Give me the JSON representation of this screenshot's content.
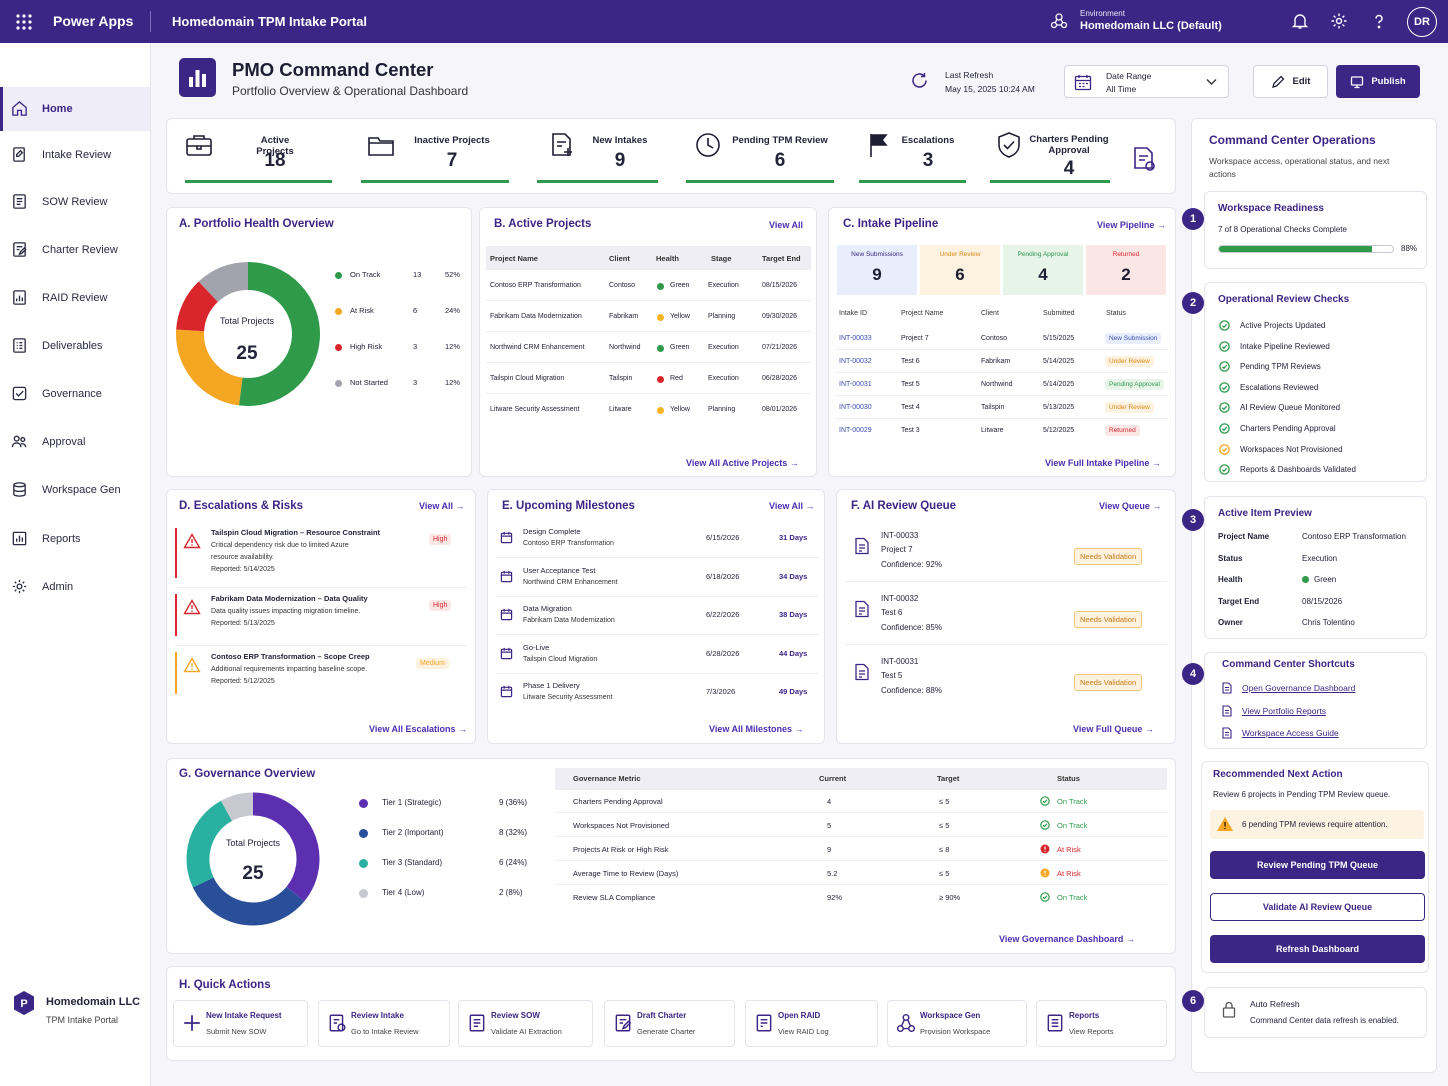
{
  "topbar": {
    "app": "Power Apps",
    "portal": "Homedomain TPM Intake Portal",
    "env_label": "Environment",
    "env_value": "Homedomain LLC (Default)",
    "user": "DR"
  },
  "sidebar": {
    "items": [
      {
        "label": "Home",
        "icon": "home-icon"
      },
      {
        "label": "Intake Review",
        "icon": "edit-doc-icon"
      },
      {
        "label": "SOW Review",
        "icon": "doc-icon"
      },
      {
        "label": "Charter Review",
        "icon": "doc-edit-icon"
      },
      {
        "label": "RAID Review",
        "icon": "doc-chart-icon"
      },
      {
        "label": "Deliverables",
        "icon": "doc-list-icon"
      },
      {
        "label": "Governance",
        "icon": "check-box-icon"
      },
      {
        "label": "Approval",
        "icon": "people-icon"
      },
      {
        "label": "Workspace Gen",
        "icon": "db-icon"
      },
      {
        "label": "Reports",
        "icon": "report-icon"
      },
      {
        "label": "Admin",
        "icon": "gear-icon"
      }
    ],
    "org_name": "Homedomain LLC",
    "org_sub": "TPM Intake Portal",
    "org_logo": "P"
  },
  "header": {
    "title": "PMO Command Center",
    "subtitle": "Portfolio Overview & Operational Dashboard",
    "refresh_label": "Last Refresh",
    "refresh_value": "May 15, 2025 10:24 AM",
    "date_label": "Date Range",
    "date_value": "All Time",
    "edit": "Edit",
    "publish": "Publish"
  },
  "kpis": [
    {
      "label": "Active Projects",
      "value": "18"
    },
    {
      "label": "Inactive Projects",
      "value": "7"
    },
    {
      "label": "New Intakes",
      "value": "9"
    },
    {
      "label": "Pending TPM Review",
      "value": "6"
    },
    {
      "label": "Escalations",
      "value": "3"
    },
    {
      "label": "Charters Pending Approval",
      "value": "4"
    }
  ],
  "health": {
    "title": "A. Portfolio Health Overview",
    "center_label": "Total Projects",
    "center_value": "25",
    "legend": [
      {
        "label": "On Track",
        "count": "13",
        "pct": "52%",
        "color": "#2e9a4a"
      },
      {
        "label": "At Risk",
        "count": "6",
        "pct": "24%",
        "color": "#f5a623"
      },
      {
        "label": "High Risk",
        "count": "3",
        "pct": "12%",
        "color": "#d9262c"
      },
      {
        "label": "Not Started",
        "count": "3",
        "pct": "12%",
        "color": "#a3a3ad"
      }
    ],
    "donut": [
      13,
      6,
      3,
      3
    ]
  },
  "active": {
    "title": "B. Active Projects",
    "view_all": "View All",
    "footer": "View All Active Projects",
    "headers": [
      "Project Name",
      "Client",
      "Health",
      "Stage",
      "Target End"
    ],
    "rows": [
      {
        "name": "Contoso ERP Transformation",
        "client": "Contoso",
        "health": "Green",
        "color": "#2e9a4a",
        "stage": "Execution",
        "end": "08/15/2026"
      },
      {
        "name": "Fabrikam Data Modernization",
        "client": "Fabrikam",
        "health": "Yellow",
        "color": "#f5b423",
        "stage": "Planning",
        "end": "09/30/2026"
      },
      {
        "name": "Northwind CRM Enhancement",
        "client": "Northwind",
        "health": "Green",
        "color": "#2e9a4a",
        "stage": "Execution",
        "end": "07/21/2026"
      },
      {
        "name": "Tailspin Cloud Migration",
        "client": "Tailspin",
        "health": "Red",
        "color": "#d9262c",
        "stage": "Execution",
        "end": "06/28/2026"
      },
      {
        "name": "Litware Security Assessment",
        "client": "Litware",
        "health": "Yellow",
        "color": "#f5b423",
        "stage": "Planning",
        "end": "08/01/2026"
      }
    ]
  },
  "pipeline": {
    "title": "C. Intake Pipeline",
    "view": "View Pipeline",
    "footer": "View Full Intake Pipeline",
    "stages": [
      {
        "label": "New Submissions",
        "value": "9",
        "bg": "#e8eefb",
        "fg": "#3b2585"
      },
      {
        "label": "Under Review",
        "value": "6",
        "bg": "#fdf1e0",
        "fg": "#d98a10"
      },
      {
        "label": "Pending Approval",
        "value": "4",
        "bg": "#e7f5e9",
        "fg": "#2e9a4a"
      },
      {
        "label": "Returned",
        "value": "2",
        "bg": "#fbe6e6",
        "fg": "#d9262c"
      }
    ],
    "headers": [
      "Intake ID",
      "Project Name",
      "Client",
      "Submitted",
      "Status"
    ],
    "rows": [
      {
        "id": "INT-00033",
        "name": "Project 7",
        "client": "Contoso",
        "date": "5/15/2025",
        "status": "New Submission",
        "bg": "#e8eefb",
        "fg": "#3b4db0"
      },
      {
        "id": "INT-00032",
        "name": "Test 6",
        "client": "Fabrikam",
        "date": "5/14/2025",
        "status": "Under Review",
        "bg": "#fdf1e0",
        "fg": "#d98a10"
      },
      {
        "id": "INT-00031",
        "name": "Test 5",
        "client": "Northwind",
        "date": "5/14/2025",
        "status": "Pending Approval",
        "bg": "#e7f5e9",
        "fg": "#2e9a4a"
      },
      {
        "id": "INT-00030",
        "name": "Test 4",
        "client": "Tailspin",
        "date": "5/13/2025",
        "status": "Under Review",
        "bg": "#fdf1e0",
        "fg": "#d98a10"
      },
      {
        "id": "INT-00029",
        "name": "Test 3",
        "client": "Litware",
        "date": "5/12/2025",
        "status": "Returned",
        "bg": "#fbe6e6",
        "fg": "#d9262c"
      }
    ]
  },
  "escalations": {
    "title": "D. Escalations & Risks",
    "view_all": "View All",
    "footer": "View All Escalations",
    "items": [
      {
        "title": "Tailspin Cloud Migration – Resource Constraint",
        "desc1": "Critical dependency risk due to limited Azure",
        "desc2": "resource availability.",
        "reported": "Reported: 5/14/2025",
        "level": "High",
        "color": "#d9262c",
        "bg": "#fbe6e6"
      },
      {
        "title": "Fabrikam Data Modernization – Data Quality",
        "desc1": "Data quality issues impacting migration timeline.",
        "desc2": "",
        "reported": "Reported: 5/13/2025",
        "level": "High",
        "color": "#d9262c",
        "bg": "#fbe6e6"
      },
      {
        "title": "Contoso ERP Transformation – Scope Creep",
        "desc1": "Additional requirements impacting baseline scope.",
        "desc2": "",
        "reported": "Reported: 5/12/2025",
        "level": "Medium",
        "color": "#f5a623",
        "bg": "#fdf1e0"
      }
    ]
  },
  "milestones": {
    "title": "E. Upcoming Milestones",
    "view_all": "View All",
    "footer": "View All Milestones",
    "items": [
      {
        "name": "Design Complete",
        "project": "Contoso ERP Transformation",
        "date": "6/15/2026",
        "days": "31 Days"
      },
      {
        "name": "User Acceptance Test",
        "project": "Northwind CRM Enhancement",
        "date": "6/18/2026",
        "days": "34 Days"
      },
      {
        "name": "Data Migration",
        "project": "Fabrikam Data Modernization",
        "date": "6/22/2026",
        "days": "38 Days"
      },
      {
        "name": "Go-Live",
        "project": "Tailspin Cloud Migration",
        "date": "6/28/2026",
        "days": "44 Days"
      },
      {
        "name": "Phase 1 Delivery",
        "project": "Litware Security Assessment",
        "date": "7/3/2026",
        "days": "49 Days"
      }
    ]
  },
  "ai": {
    "title": "F. AI Review Queue",
    "view": "View Queue",
    "footer": "View Full Queue",
    "items": [
      {
        "id": "INT-00033",
        "name": "Project 7",
        "conf": "Confidence: 92%",
        "status": "Needs Validation"
      },
      {
        "id": "INT-00032",
        "name": "Test 6",
        "conf": "Confidence: 85%",
        "status": "Needs Validation"
      },
      {
        "id": "INT-00031",
        "name": "Test 5",
        "conf": "Confidence: 88%",
        "status": "Needs Validation"
      }
    ]
  },
  "governance": {
    "title": "G. Governance Overview",
    "center_label": "Total Projects",
    "center_value": "25",
    "footer": "View Governance Dashboard",
    "donut": [
      9,
      8,
      6,
      2
    ],
    "tiers": [
      {
        "label": "Tier 1 (Strategic)",
        "value": "9 (36%)",
        "color": "#5b2fb0"
      },
      {
        "label": "Tier 2 (Important)",
        "value": "8 (32%)",
        "color": "#2a4f9a"
      },
      {
        "label": "Tier 3 (Standard)",
        "value": "6 (24%)",
        "color": "#2ab0a0"
      },
      {
        "label": "Tier 4 (Low)",
        "value": "2 (8%)",
        "color": "#c8c8d0"
      }
    ],
    "headers": [
      "Governance Metric",
      "Current",
      "Target",
      "Status"
    ],
    "rows": [
      {
        "metric": "Charters Pending Approval",
        "current": "4",
        "target": "≤ 5",
        "status": "On Track",
        "color": "#2e9a4a"
      },
      {
        "metric": "Workspaces Not Provisioned",
        "current": "5",
        "target": "≤ 5",
        "status": "On Track",
        "color": "#2e9a4a"
      },
      {
        "metric": "Projects At Risk or High Risk",
        "current": "9",
        "target": "≤ 8",
        "status": "At Risk",
        "color": "#d9262c"
      },
      {
        "metric": "Average Time to Review (Days)",
        "current": "5.2",
        "target": "≤ 5",
        "status": "At Risk",
        "color": "#d9262c"
      },
      {
        "metric": "Review SLA Compliance",
        "current": "92%",
        "target": "≥ 90%",
        "status": "On Track",
        "color": "#2e9a4a"
      }
    ]
  },
  "quick": {
    "title": "H. Quick Actions",
    "items": [
      {
        "title": "New Intake Request",
        "sub": "Submit New SOW"
      },
      {
        "title": "Review Intake",
        "sub": "Go to Intake Review"
      },
      {
        "title": "Review SOW",
        "sub": "Validate AI Extraction"
      },
      {
        "title": "Draft Charter",
        "sub": "Generate Charter"
      },
      {
        "title": "Open RAID",
        "sub": "View RAID Log"
      },
      {
        "title": "Workspace Gen",
        "sub": "Provision Workspace"
      },
      {
        "title": "Reports",
        "sub": "View Reports"
      }
    ]
  },
  "ops": {
    "title": "Command Center Operations",
    "subtitle1": "Workspace access, operational status, and next",
    "subtitle2": "actions",
    "readiness_title": "Workspace Readiness",
    "readiness_text": "7 of 8 Operational Checks Complete",
    "readiness_pct": "88%",
    "readiness_value": 0.88,
    "checks_title": "Operational Review Checks",
    "checks": [
      {
        "label": "Active Projects Updated",
        "state": "done"
      },
      {
        "label": "Intake Pipeline Reviewed",
        "state": "done"
      },
      {
        "label": "Pending TPM Reviews",
        "state": "done"
      },
      {
        "label": "Escalations Reviewed",
        "state": "done"
      },
      {
        "label": "AI Review Queue Monitored",
        "state": "done"
      },
      {
        "label": "Charters Pending Approval",
        "state": "done"
      },
      {
        "label": "Workspaces Not Provisioned",
        "state": "pending"
      },
      {
        "label": "Reports & Dashboards Validated",
        "state": "done"
      }
    ],
    "preview_title": "Active Item Preview",
    "preview": [
      {
        "k": "Project Name",
        "v": "Contoso ERP Transformation"
      },
      {
        "k": "Status",
        "v": "Execution"
      },
      {
        "k": "Health",
        "v": "Green"
      },
      {
        "k": "Target End",
        "v": "08/15/2026"
      },
      {
        "k": "Owner",
        "v": "Chris Tolentino"
      }
    ],
    "shortcuts_title": "Command Center Shortcuts",
    "shortcuts": [
      "Open Governance Dashboard",
      "View Portfolio Reports",
      "Workspace Access Guide"
    ],
    "next_title": "Recommended Next Action",
    "next_text": "Review 6 projects in Pending TPM Review queue.",
    "next_warn": "6 pending TPM reviews require attention.",
    "btn1": "Review Pending TPM Queue",
    "btn2": "Validate AI Review Queue",
    "btn3": "Refresh Dashboard",
    "auto_title": "Auto Refresh",
    "auto_text": "Command Center data refresh is enabled.",
    "steps": [
      "1",
      "2",
      "3",
      "4",
      "6"
    ]
  }
}
